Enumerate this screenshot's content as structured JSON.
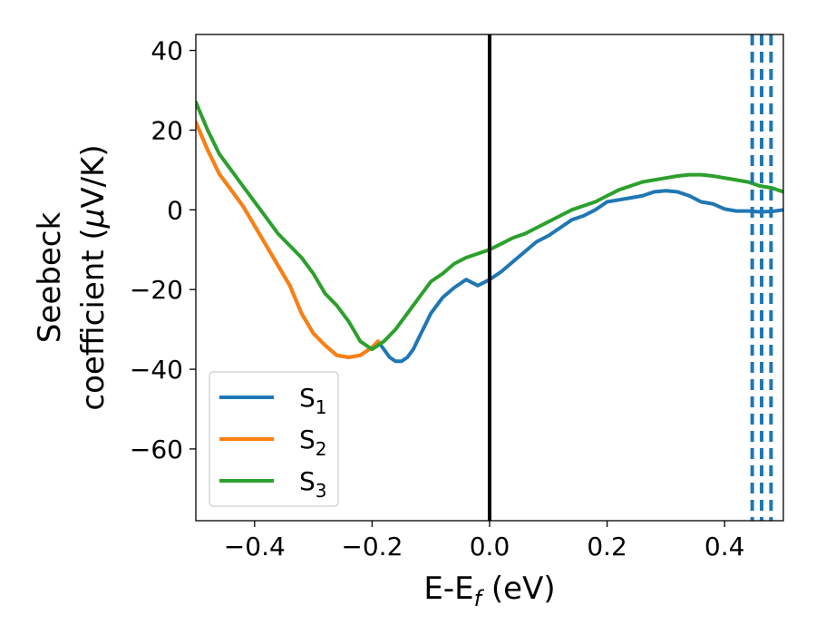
{
  "chart_data": {
    "type": "line",
    "title": "",
    "xlabel": "E-E",
    "xlabel_sub": "f",
    "xlabel_unit": " (eV)",
    "ylabel_line1": "Seebeck",
    "ylabel_line2_prefix": "coefficient  (",
    "ylabel_mu": "μ",
    "ylabel_line2_suffix": "V/K)",
    "xlim": [
      -0.5,
      0.5
    ],
    "ylim": [
      -78,
      44
    ],
    "xticks": [
      -0.4,
      -0.2,
      0.0,
      0.2,
      0.4
    ],
    "xtick_labels": [
      "−0.4",
      "−0.2",
      "0.0",
      "0.2",
      "0.4"
    ],
    "yticks": [
      -60,
      -40,
      -20,
      0,
      20,
      40
    ],
    "ytick_labels": [
      "−60",
      "−40",
      "−20",
      "0",
      "20",
      "40"
    ],
    "grid": false,
    "legend_position": "lower-left",
    "series": [
      {
        "name": "S",
        "subscript": "1",
        "color": "#1f77b4",
        "x": [
          -0.5,
          -0.48,
          -0.46,
          -0.44,
          -0.42,
          -0.4,
          -0.38,
          -0.36,
          -0.34,
          -0.32,
          -0.3,
          -0.28,
          -0.26,
          -0.24,
          -0.22,
          -0.2,
          -0.19,
          -0.18,
          -0.17,
          -0.16,
          -0.15,
          -0.14,
          -0.13,
          -0.12,
          -0.11,
          -0.1,
          -0.08,
          -0.06,
          -0.04,
          -0.02,
          0.0,
          0.02,
          0.04,
          0.06,
          0.08,
          0.1,
          0.12,
          0.14,
          0.16,
          0.18,
          0.2,
          0.22,
          0.24,
          0.26,
          0.28,
          0.3,
          0.32,
          0.34,
          0.36,
          0.38,
          0.4,
          0.42,
          0.44,
          0.46,
          0.48,
          0.5
        ],
        "y": [
          22,
          15,
          9,
          5,
          1,
          -4,
          -9,
          -14,
          -19,
          -26,
          -31,
          -34,
          -36.5,
          -37,
          -36.5,
          -34.5,
          -33,
          -35,
          -37,
          -38,
          -38,
          -37,
          -35,
          -32,
          -29,
          -26,
          -22,
          -19.5,
          -17.5,
          -19,
          -17.5,
          -15.5,
          -13,
          -10.5,
          -8,
          -6.5,
          -4.5,
          -2.5,
          -1.5,
          0,
          2,
          2.5,
          3,
          3.5,
          4.5,
          4.8,
          4.5,
          3.5,
          2,
          1.5,
          0.2,
          -0.3,
          -0.3,
          -0.5,
          -0.4,
          0
        ]
      },
      {
        "name": "S",
        "subscript": "2",
        "color": "#ff7f0e",
        "x": [
          -0.5,
          -0.48,
          -0.46,
          -0.44,
          -0.42,
          -0.4,
          -0.38,
          -0.36,
          -0.34,
          -0.32,
          -0.3,
          -0.28,
          -0.26,
          -0.24,
          -0.22,
          -0.2,
          -0.19
        ],
        "y": [
          22,
          15,
          9,
          5,
          1,
          -4,
          -9,
          -14,
          -19,
          -26,
          -31,
          -34,
          -36.5,
          -37,
          -36.5,
          -34.5,
          -33
        ]
      },
      {
        "name": "S",
        "subscript": "3",
        "color": "#2ca02c",
        "x": [
          -0.5,
          -0.48,
          -0.46,
          -0.44,
          -0.42,
          -0.4,
          -0.38,
          -0.36,
          -0.34,
          -0.32,
          -0.3,
          -0.28,
          -0.26,
          -0.24,
          -0.22,
          -0.2,
          -0.18,
          -0.16,
          -0.14,
          -0.12,
          -0.1,
          -0.08,
          -0.06,
          -0.04,
          -0.02,
          0.0,
          0.02,
          0.04,
          0.06,
          0.08,
          0.1,
          0.12,
          0.14,
          0.16,
          0.18,
          0.2,
          0.22,
          0.24,
          0.26,
          0.28,
          0.3,
          0.32,
          0.34,
          0.36,
          0.38,
          0.4,
          0.42,
          0.44,
          0.46,
          0.48,
          0.5
        ],
        "y": [
          27,
          20,
          14,
          10,
          6,
          2,
          -2,
          -6,
          -9,
          -12,
          -16,
          -21,
          -24,
          -28,
          -33,
          -35,
          -33,
          -30,
          -26,
          -22,
          -18,
          -16,
          -13.5,
          -12,
          -11,
          -10,
          -8.5,
          -7,
          -6,
          -4.5,
          -3,
          -1.5,
          0,
          1,
          2,
          3.5,
          5,
          6,
          7,
          7.5,
          8,
          8.5,
          8.8,
          8.8,
          8.5,
          8,
          7.5,
          7,
          6,
          5.5,
          4.5
        ]
      }
    ],
    "vertical_lines": [
      {
        "x": 0.0,
        "color": "#000000",
        "style": "solid"
      },
      {
        "x": 0.447,
        "color": "#1f77b4",
        "style": "dashed"
      },
      {
        "x": 0.463,
        "color": "#1f77b4",
        "style": "dashed"
      },
      {
        "x": 0.479,
        "color": "#1f77b4",
        "style": "dashed"
      }
    ]
  }
}
